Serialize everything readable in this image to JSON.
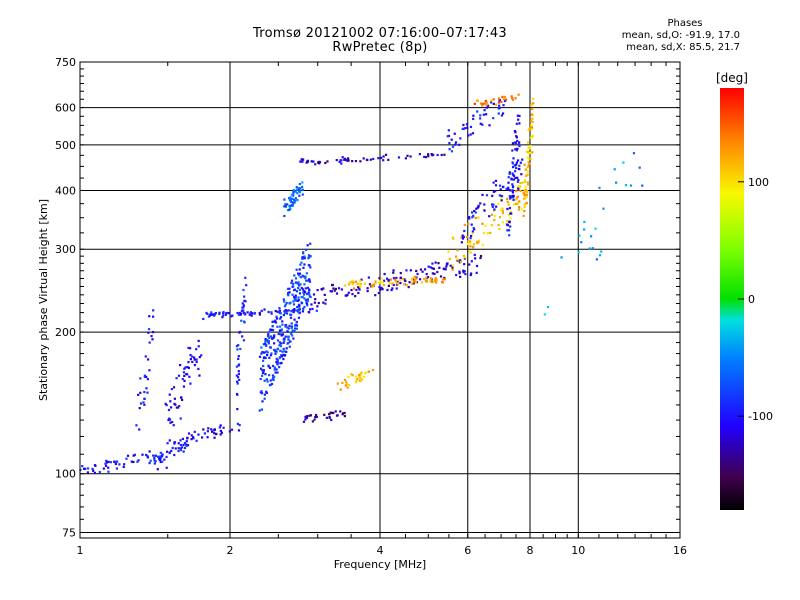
{
  "header": {
    "title_line1": "Tromsø 20121002 07:16:00–07:17:43",
    "title_line2": "RwPretec (8p)"
  },
  "phases_box": {
    "heading": "Phases",
    "line_o": "mean, sd,O: -91.9, 17.0",
    "line_x": "mean, sd,X: 85.5, 21.7"
  },
  "colorbar": {
    "unit_label": "[deg]",
    "tick_labels": [
      "100",
      "0",
      "-100"
    ],
    "ticks": [
      100,
      0,
      -100
    ],
    "range": [
      -180,
      180
    ]
  },
  "chart_data": {
    "type": "scatter",
    "xlabel": "Frequency [MHz]",
    "ylabel": "Stationary phase Virtual Height [km]",
    "x_scale": "log",
    "y_scale": "log",
    "xlim": [
      1,
      16
    ],
    "ylim": [
      73,
      750
    ],
    "x_ticks": [
      1,
      2,
      4,
      6,
      8,
      10,
      16
    ],
    "x_tick_labels": [
      "1",
      "2",
      "4",
      "6",
      "8",
      "10",
      "16"
    ],
    "y_ticks": [
      75,
      100,
      200,
      300,
      400,
      500,
      600,
      750
    ],
    "y_tick_labels": [
      "75",
      "100",
      "200",
      "300",
      "400",
      "500",
      "600",
      "750"
    ],
    "grid": true,
    "color_variable": "phase [deg]",
    "clusters": [
      {
        "x": [
          1.0,
          1.5
        ],
        "y": [
          100,
          112
        ],
        "phase": -100,
        "n": 60,
        "spread": 0.03
      },
      {
        "x": [
          1.5,
          2.1
        ],
        "y": [
          112,
          130
        ],
        "phase": -105,
        "n": 50,
        "spread": 0.03
      },
      {
        "x": [
          1.38,
          1.65
        ],
        "y": [
          100,
          120
        ],
        "phase": -95,
        "n": 25,
        "spread": 0.05
      },
      {
        "x": [
          1.3,
          1.4
        ],
        "y": [
          110,
          240
        ],
        "phase": -100,
        "n": 30,
        "spread": 0.03
      },
      {
        "x": [
          1.5,
          1.75
        ],
        "y": [
          120,
          210
        ],
        "phase": -110,
        "n": 60,
        "spread": 0.08
      },
      {
        "x": [
          1.7,
          3.0
        ],
        "y": [
          215,
          225
        ],
        "phase": -100,
        "n": 70,
        "spread": 0.02
      },
      {
        "x": [
          2.05,
          2.15
        ],
        "y": [
          130,
          280
        ],
        "phase": -90,
        "n": 40,
        "spread": 0.03
      },
      {
        "x": [
          2.3,
          2.9
        ],
        "y": [
          135,
          320
        ],
        "phase": -85,
        "n": 320,
        "spread": 0.02
      },
      {
        "x": [
          2.55,
          2.8
        ],
        "y": [
          350,
          420
        ],
        "phase": -60,
        "n": 55,
        "spread": 0.04
      },
      {
        "x": [
          2.8,
          3.4
        ],
        "y": [
          130,
          135
        ],
        "phase": -130,
        "n": 30,
        "spread": 0.03
      },
      {
        "x": [
          3.3,
          3.9
        ],
        "y": [
          150,
          170
        ],
        "phase": 110,
        "n": 30,
        "spread": 0.04
      },
      {
        "x": [
          2.9,
          6.5
        ],
        "y": [
          225,
          295
        ],
        "phase": -120,
        "n": 140,
        "spread": 0.02
      },
      {
        "x": [
          3.4,
          5.4
        ],
        "y": [
          250,
          262
        ],
        "phase": 115,
        "n": 70,
        "spread": 0.03
      },
      {
        "x": [
          5.5,
          7.9
        ],
        "y": [
          270,
          430
        ],
        "phase": 110,
        "n": 90,
        "spread": 0.03
      },
      {
        "x": [
          5.8,
          7.7
        ],
        "y": [
          300,
          480
        ],
        "phase": -100,
        "n": 70,
        "spread": 0.03
      },
      {
        "x": [
          7.2,
          7.6
        ],
        "y": [
          300,
          620
        ],
        "phase": -100,
        "n": 60,
        "spread": 0.03
      },
      {
        "x": [
          7.8,
          8.1
        ],
        "y": [
          350,
          640
        ],
        "phase": 110,
        "n": 70,
        "spread": 0.03
      },
      {
        "x": [
          2.75,
          5.4
        ],
        "y": [
          455,
          480
        ],
        "phase": -120,
        "n": 60,
        "spread": 0.02
      },
      {
        "x": [
          5.4,
          7.2
        ],
        "y": [
          480,
          640
        ],
        "phase": -100,
        "n": 50,
        "spread": 0.03
      },
      {
        "x": [
          6.2,
          7.6
        ],
        "y": [
          600,
          645
        ],
        "phase": 140,
        "n": 25,
        "spread": 0.02
      },
      {
        "x": [
          8.5,
          13.5
        ],
        "y": [
          200,
          520
        ],
        "phase": -40,
        "n": 25,
        "spread": 0.06
      }
    ]
  }
}
